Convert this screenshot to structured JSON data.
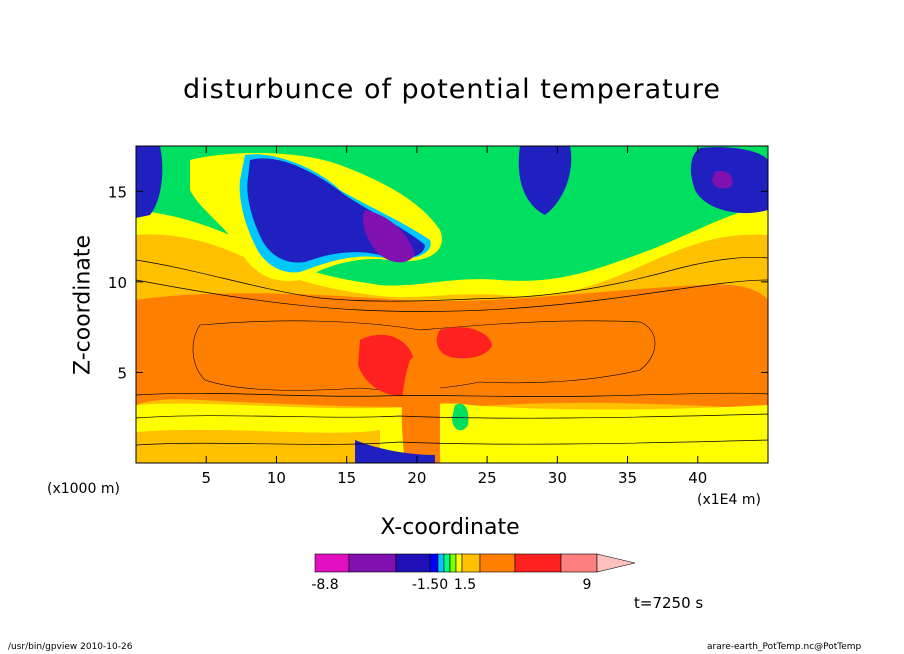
{
  "chart_data": {
    "type": "heatmap",
    "title": "disturbunce of potential temperature",
    "xlabel": "X-coordinate",
    "ylabel": "Z-coordinate",
    "x_unit_left": "(x1000 m)",
    "x_unit_right": "(x1E4 m)",
    "xlim": [
      0,
      45
    ],
    "ylim": [
      0,
      17.5
    ],
    "x_ticks": [
      5,
      10,
      15,
      20,
      25,
      30,
      35,
      40
    ],
    "y_ticks": [
      5,
      10,
      15
    ],
    "colorbar": {
      "colors": [
        "#e010c0",
        "#8010b0",
        "#2010b8",
        "#0000ff",
        "#00c8ff",
        "#00ff80",
        "#80ff00",
        "#ffff00",
        "#ffc000",
        "#ff8000",
        "#ff2020",
        "#ff8080",
        "#ffc0c0"
      ],
      "tick_labels": [
        "-8.8",
        "-1.50",
        "1.5",
        "9"
      ]
    },
    "time_label": "t=7250 s"
  },
  "footer": {
    "left": "/usr/bin/gpview   2010-10-26",
    "right": "arare-earth_PotTemp.nc@PotTemp"
  }
}
